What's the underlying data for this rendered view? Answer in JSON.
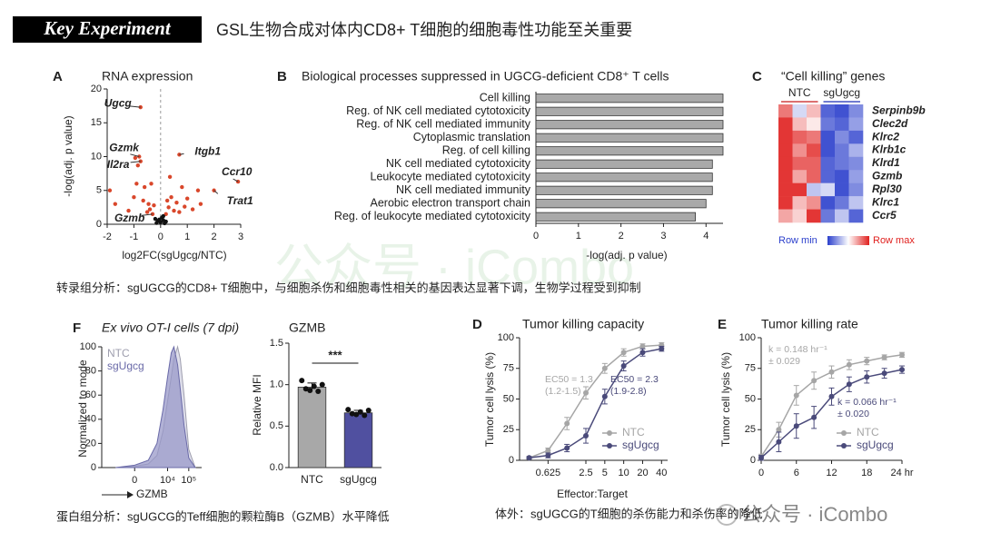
{
  "header": {
    "badge": "Key Experiment",
    "title": "GSL生物合成对体内CD8+ T细胞的细胞毒性功能至关重要"
  },
  "captions": [
    "转录组分析：sgUGCG的CD8+ T细胞中，与细胞杀伤和细胞毒性相关的基因表达显著下调，生物学过程受到抑制",
    "蛋白组分析：sgUGCG的Teff细胞的颗粒酶B（GZMB）水平降低",
    "体外：sgUGCG的T细胞的杀伤能力和杀伤率的降低"
  ],
  "watermarks": [
    "公众号 · iCombo",
    "公众号 · iCombo"
  ],
  "chart_data": [
    {
      "letter": "A",
      "type": "scatter",
      "title": "RNA expression",
      "xlabel": "log2FC(sgUgcg/NTC)",
      "ylabel": "-log(adj. p value)",
      "xlim": [
        -2,
        3
      ],
      "xticks": [
        -2,
        -1,
        0,
        1,
        2,
        3
      ],
      "ylim": [
        0,
        20
      ],
      "yticks": [
        0,
        5,
        10,
        15,
        20
      ],
      "series": [
        {
          "color": "#d9472b",
          "x": [
            -0.75,
            -0.8,
            -0.75,
            0.7,
            2.9,
            2.0,
            -1.9,
            -1.7,
            -1.2,
            -1.0,
            -0.9,
            -0.85,
            -0.95,
            -0.6,
            -0.5,
            -0.45,
            -0.4,
            -0.35,
            -0.3,
            -0.25,
            0.2,
            0.3,
            0.35,
            0.4,
            0.5,
            0.6,
            0.7,
            0.8,
            0.9,
            1.0,
            1.2,
            1.4,
            1.5,
            -0.65,
            0.25
          ],
          "y": [
            17.3,
            10,
            9.3,
            10.3,
            6.3,
            5,
            5,
            3,
            2,
            4,
            6,
            8.7,
            9.8,
            5.5,
            1.8,
            3,
            2.2,
            6,
            1.5,
            2.8,
            1.5,
            2.5,
            7,
            4,
            2,
            3.2,
            1.8,
            5.5,
            2.6,
            3.8,
            2.2,
            5,
            3,
            3.5,
            3.5
          ]
        },
        {
          "color": "#111111",
          "x": [
            -0.2,
            -0.1,
            0,
            0.1,
            0.2,
            -0.15,
            0.05,
            0.15,
            -0.05,
            0.1
          ],
          "y": [
            0.8,
            0.5,
            0.3,
            0.6,
            0.4,
            0.2,
            1,
            0.15,
            0.7,
            1.2
          ]
        }
      ],
      "annotations": [
        {
          "text": "Ugcg",
          "x": -0.75,
          "y": 17.3
        },
        {
          "text": "Gzmk",
          "x": -0.8,
          "y": 10
        },
        {
          "text": "Il2ra",
          "x": -0.75,
          "y": 9.3
        },
        {
          "text": "Itgb1",
          "x": 0.7,
          "y": 10.3
        },
        {
          "text": "Ccr10",
          "x": 2.9,
          "y": 6.3
        },
        {
          "text": "Trat1",
          "x": 2.0,
          "y": 5
        },
        {
          "text": "Gzmb",
          "x": -0.3,
          "y": 1.5
        }
      ]
    },
    {
      "letter": "B",
      "type": "bar",
      "orientation": "horizontal",
      "title": "Biological processes suppressed in UGCG-deficient CD8⁺ T cells",
      "xlabel": "-log(adj. p value)",
      "categories": [
        "Cell killing",
        "Reg. of NK cell mediated cytotoxicity",
        "Reg. of NK cell mediated immunity",
        "Cytoplasmic translation",
        "Reg. of cell killing",
        "NK cell mediated cytotoxicity",
        "Leukocyte mediated cytotoxicity",
        "NK cell mediated immunity",
        "Aerobic electron transport chain",
        "Reg. of leukocyte mediated cytotoxicity"
      ],
      "values": [
        4.4,
        4.4,
        4.4,
        4.4,
        4.4,
        4.15,
        4.15,
        4.15,
        4.0,
        3.75
      ],
      "color": "#a9a9a9",
      "xlim": [
        0,
        4.4
      ],
      "xticks": [
        0,
        1,
        2,
        3,
        4
      ]
    },
    {
      "letter": "C",
      "type": "heatmap",
      "title": "“Cell killing” genes",
      "groups": [
        "NTC",
        "sgUgcg"
      ],
      "rows": [
        "Serpinb9b",
        "Clec2d",
        "Klrc2",
        "Klrb1c",
        "Klrd1",
        "Gzmb",
        "Rpl30",
        "Klrc1",
        "Ccr5"
      ],
      "values": [
        [
          0.6,
          -0.2,
          0.3,
          -0.8,
          -0.9,
          -0.6
        ],
        [
          0.9,
          0.3,
          0.1,
          -0.7,
          -0.8,
          -0.5
        ],
        [
          0.9,
          0.7,
          0.6,
          -0.9,
          -0.6,
          -0.8
        ],
        [
          0.9,
          0.5,
          0.8,
          -0.9,
          -0.7,
          -0.4
        ],
        [
          0.9,
          0.7,
          0.7,
          -0.8,
          -0.7,
          -0.6
        ],
        [
          0.9,
          0.4,
          0.7,
          -0.8,
          -0.9,
          -0.5
        ],
        [
          0.9,
          0.9,
          -0.3,
          -0.2,
          -0.9,
          -0.6
        ],
        [
          0.9,
          0.3,
          0.5,
          -0.9,
          -0.7,
          -0.3
        ],
        [
          0.4,
          0.2,
          0.9,
          -0.7,
          -0.3,
          -0.8
        ]
      ],
      "clim": [
        -1,
        1
      ],
      "colors": [
        "#2b3fcc",
        "#ffffff",
        "#e0201e"
      ],
      "legend_labels": [
        "Row min",
        "Row max"
      ]
    },
    {
      "letter": "F",
      "type": "area",
      "title": "Ex vivo OT-I cells (7 dpi)",
      "ylabel": "Normalized to mode",
      "xlabel": "GZMB",
      "xscale": "biexponential",
      "xlim": [
        -10000,
        400000
      ],
      "xticks": [
        0,
        {
          "value": 10000,
          "label": "10⁴"
        },
        {
          "value": 100000,
          "label": "10⁵"
        }
      ],
      "ylim": [
        0,
        100
      ],
      "yticks": [
        0,
        20,
        40,
        60,
        80,
        100
      ],
      "x": [
        -2000,
        0,
        1000,
        3000,
        6000,
        10000,
        15000,
        20000,
        30000,
        40000,
        60000,
        100000,
        200000
      ],
      "series": [
        {
          "name": "NTC",
          "color": "#9e9eae",
          "fill": "#d4d4e4",
          "values": [
            0,
            1,
            3,
            10,
            30,
            55,
            75,
            90,
            100,
            90,
            60,
            15,
            0
          ]
        },
        {
          "name": "sgUgcg",
          "color": "#6a6aa8",
          "fill": "#9898c8",
          "values": [
            0,
            2,
            6,
            20,
            48,
            75,
            95,
            100,
            85,
            65,
            35,
            8,
            0
          ]
        }
      ]
    },
    {
      "type": "bar",
      "orientation": "vertical",
      "title": "GZMB",
      "ylabel": "Relative MFI",
      "categories": [
        "NTC",
        "sgUgcg"
      ],
      "values": [
        0.97,
        0.66
      ],
      "errors": [
        0.05,
        0.03
      ],
      "colors": [
        "#a8a8a8",
        "#5050a0"
      ],
      "points": [
        [
          1.05,
          0.95,
          0.93,
          0.98,
          0.92,
          1.0
        ],
        [
          0.7,
          0.65,
          0.64,
          0.67,
          0.63,
          0.69
        ]
      ],
      "ylim": [
        0,
        1.5
      ],
      "yticks": [
        {
          "value": 0,
          "label": "0.0"
        },
        0.5,
        {
          "value": 1,
          "label": "1.0"
        },
        1.5
      ],
      "significance": "***"
    },
    {
      "letter": "D",
      "type": "line",
      "title": "Tumor killing capacity",
      "xlabel": "Effector:Target",
      "ylabel": "Tumor cell lysis (%)",
      "xscale": "log",
      "xlim": [
        0.22,
        50
      ],
      "xticks": [
        0.625,
        2.5,
        5,
        10,
        20,
        40
      ],
      "ylim": [
        0,
        100
      ],
      "yticks": [
        0,
        25,
        50,
        75,
        100
      ],
      "x": [
        0.3125,
        0.625,
        1.25,
        2.5,
        5,
        10,
        20,
        40
      ],
      "legend": "lower right",
      "series": [
        {
          "name": "NTC",
          "color": "#a6a6a6",
          "values": [
            2,
            8,
            30,
            55,
            75,
            88,
            93,
            94
          ],
          "errors": [
            1,
            2,
            5,
            5,
            4,
            3,
            2,
            2
          ]
        },
        {
          "name": "sgUgcg",
          "color": "#4a4a7a",
          "values": [
            2,
            4,
            10,
            20,
            52,
            77,
            88,
            91
          ],
          "errors": [
            1,
            2,
            3,
            6,
            6,
            4,
            3,
            2
          ]
        }
      ],
      "annotations": [
        {
          "lines": [
            "EC50 = 1.3",
            "(1.2-1.5)"
          ],
          "color": "#a6a6a6"
        },
        {
          "lines": [
            "EC50 = 2.3",
            "(1.9-2.8)"
          ],
          "color": "#4a4a7a"
        }
      ]
    },
    {
      "letter": "E",
      "type": "line",
      "title": "Tumor killing rate",
      "ylabel": "Tumor cell lysis (%)",
      "xlim": [
        0,
        24
      ],
      "xticks": [
        0,
        6,
        12,
        18,
        {
          "value": 24,
          "label": "24 hr"
        }
      ],
      "ylim": [
        0,
        100
      ],
      "yticks": [
        0,
        25,
        50,
        75,
        100
      ],
      "x": [
        0,
        3,
        6,
        9,
        12,
        15,
        18,
        21,
        24
      ],
      "legend": "lower right",
      "series": [
        {
          "name": "NTC",
          "color": "#a6a6a6",
          "values": [
            3,
            25,
            53,
            65,
            72,
            78,
            81,
            84,
            86
          ],
          "errors": [
            2,
            6,
            8,
            7,
            5,
            4,
            3,
            2,
            2
          ]
        },
        {
          "name": "sgUgcg",
          "color": "#4a4a7a",
          "values": [
            2,
            15,
            28,
            35,
            52,
            62,
            68,
            71,
            74
          ],
          "errors": [
            2,
            8,
            10,
            9,
            7,
            6,
            5,
            4,
            3
          ]
        }
      ],
      "annotations": [
        {
          "lines": [
            "k = 0.148 hr⁻¹",
            "± 0.029"
          ],
          "color": "#a6a6a6"
        },
        {
          "lines": [
            "k = 0.066 hr⁻¹",
            "± 0.020"
          ],
          "color": "#4a4a7a"
        }
      ]
    }
  ]
}
